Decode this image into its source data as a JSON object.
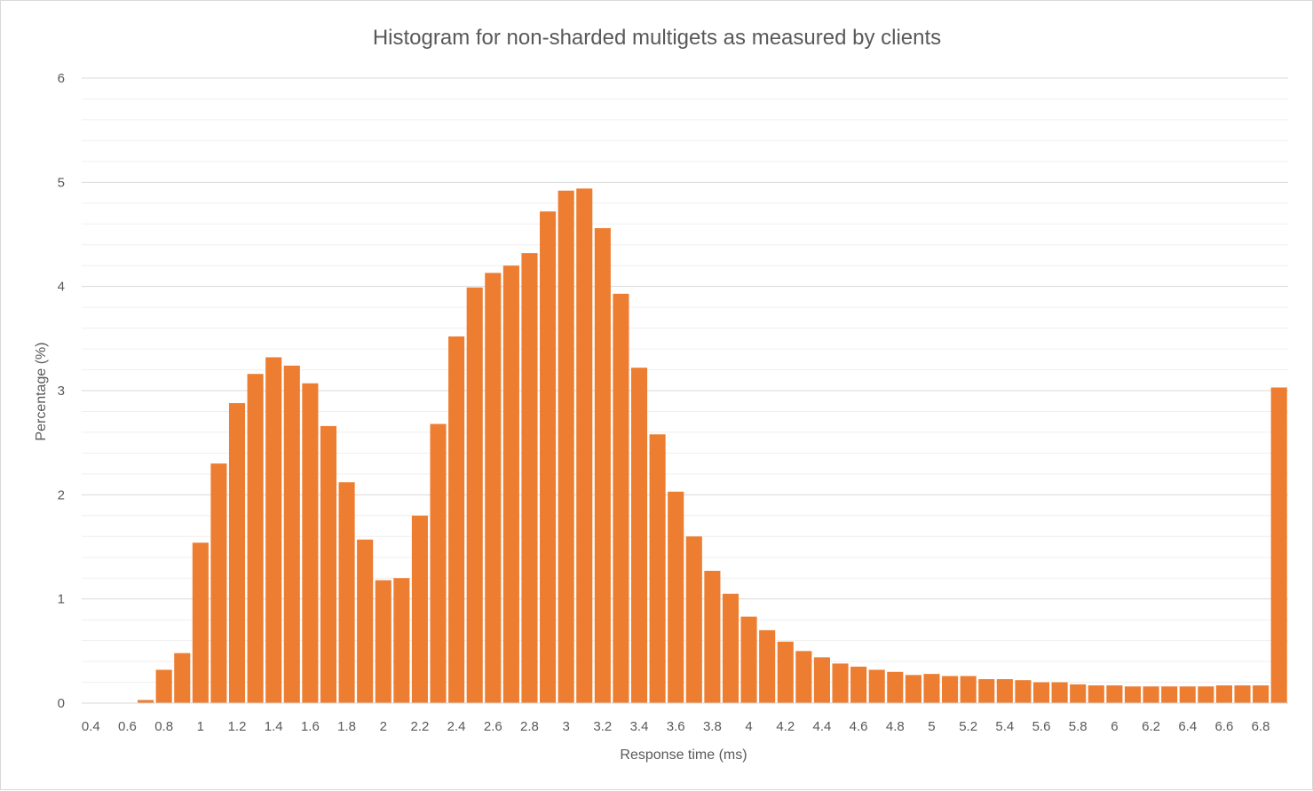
{
  "chart_data": {
    "type": "bar",
    "title": "Histogram for non-sharded multigets as measured by clients",
    "xlabel": "Response time (ms)",
    "ylabel": "Percentage (%)",
    "ylim": [
      0,
      6
    ],
    "y_ticks": [
      "0",
      "1",
      "2",
      "3",
      "4",
      "5",
      "6"
    ],
    "grid": true,
    "legend": "none",
    "bar_color": "#ED7D31",
    "categories": [
      "0.4",
      "0.5",
      "0.6",
      "0.7",
      "0.8",
      "0.9",
      "1",
      "1.1",
      "1.2",
      "1.3",
      "1.4",
      "1.5",
      "1.6",
      "1.7",
      "1.8",
      "1.9",
      "2",
      "2.1",
      "2.2",
      "2.3",
      "2.4",
      "2.5",
      "2.6",
      "2.7",
      "2.8",
      "2.9",
      "3",
      "3.1",
      "3.2",
      "3.3",
      "3.4",
      "3.5",
      "3.6",
      "3.7",
      "3.8",
      "3.9",
      "4",
      "4.1",
      "4.2",
      "4.3",
      "4.4",
      "4.5",
      "4.6",
      "4.7",
      "4.8",
      "4.9",
      "5",
      "5.1",
      "5.2",
      "5.3",
      "5.4",
      "5.5",
      "5.6",
      "5.7",
      "5.8",
      "5.9",
      "6",
      "6.1",
      "6.2",
      "6.3",
      "6.4",
      "6.5",
      "6.6",
      "6.7",
      "6.8",
      "6.9"
    ],
    "x_tick_labels": [
      "0.4",
      "0.6",
      "0.8",
      "1",
      "1.2",
      "1.4",
      "1.6",
      "1.8",
      "2",
      "2.2",
      "2.4",
      "2.6",
      "2.8",
      "3",
      "3.2",
      "3.4",
      "3.6",
      "3.8",
      "4",
      "4.2",
      "4.4",
      "4.6",
      "4.8",
      "5",
      "5.2",
      "5.4",
      "5.6",
      "5.8",
      "6",
      "6.2",
      "6.4",
      "6.6",
      "6.8"
    ],
    "values": [
      0,
      0,
      0,
      0.03,
      0.32,
      0.48,
      1.54,
      2.3,
      2.88,
      3.16,
      3.32,
      3.24,
      3.07,
      2.66,
      2.12,
      1.57,
      1.18,
      1.2,
      1.8,
      2.68,
      3.52,
      3.99,
      4.13,
      4.2,
      4.32,
      4.72,
      4.92,
      4.94,
      4.56,
      3.93,
      3.22,
      2.58,
      2.03,
      1.6,
      1.27,
      1.05,
      0.83,
      0.7,
      0.59,
      0.5,
      0.44,
      0.38,
      0.35,
      0.32,
      0.3,
      0.27,
      0.28,
      0.26,
      0.26,
      0.23,
      0.23,
      0.22,
      0.2,
      0.2,
      0.18,
      0.17,
      0.17,
      0.16,
      0.16,
      0.16,
      0.16,
      0.16,
      0.17,
      0.17,
      0.17,
      3.03
    ]
  }
}
